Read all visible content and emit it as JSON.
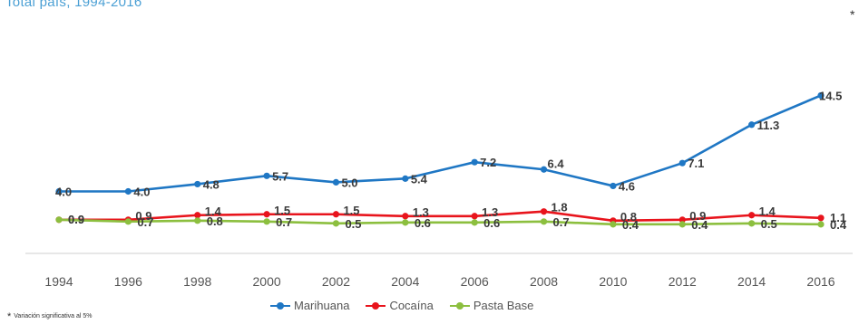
{
  "chart_data": {
    "type": "line",
    "title": "",
    "subtitle": "Total país, 1994-2016",
    "xlabel": "",
    "ylabel": "",
    "x": [
      "1994",
      "1996",
      "1998",
      "2000",
      "2002",
      "2004",
      "2006",
      "2008",
      "2010",
      "2012",
      "2014",
      "2016"
    ],
    "ylim": [
      0,
      16
    ],
    "grid": false,
    "legend_position": "bottom",
    "series": [
      {
        "name": "Marihuana",
        "color": "#1f77c4",
        "values": [
          4.0,
          4.0,
          4.8,
          5.7,
          5.0,
          5.4,
          7.2,
          6.4,
          4.6,
          7.1,
          11.3,
          14.5
        ],
        "labels": [
          "4.0",
          "4.0",
          "4.8",
          "5.7",
          "5.0",
          "5.4",
          "7.2",
          "6.4",
          "4.6",
          "7.1",
          "11.3",
          "14.5"
        ]
      },
      {
        "name": "Cocaína",
        "color": "#e8141c",
        "values": [
          0.9,
          0.9,
          1.4,
          1.5,
          1.5,
          1.3,
          1.3,
          1.8,
          0.8,
          0.9,
          1.4,
          1.1
        ],
        "labels": [
          "0.9",
          "0.9",
          "1.4",
          "1.5",
          "1.5",
          "1.3",
          "1.3",
          "1.8",
          "0.8",
          "0.9",
          "1.4",
          "1.1"
        ]
      },
      {
        "name": "Pasta Base",
        "color": "#8cbf3f",
        "values": [
          0.9,
          0.7,
          0.8,
          0.7,
          0.5,
          0.6,
          0.6,
          0.7,
          0.4,
          0.4,
          0.5,
          0.4
        ],
        "labels": [
          "0.9",
          "0.7",
          "0.8",
          "0.7",
          "0.5",
          "0.6",
          "0.6",
          "0.7",
          "0.4",
          "0.4",
          "0.5",
          "0.4"
        ]
      }
    ],
    "annotations": {
      "significance_marker": "*",
      "footnote": "Variación significativa al 5%"
    }
  }
}
